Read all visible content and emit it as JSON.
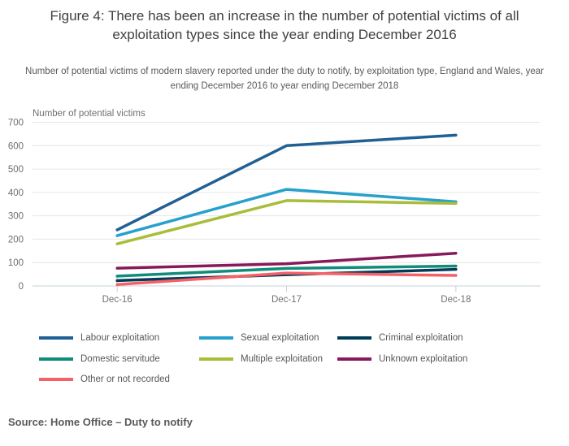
{
  "figure": {
    "title": "Figure 4: There has been an increase in the number of potential victims of all exploitation types since the year ending December 2016",
    "subtitle": "Number of potential victims of modern slavery reported under the duty to notify, by exploitation type, England and Wales, year ending December 2016 to year ending December 2018",
    "source": "Source: Home Office – Duty to notify"
  },
  "chart_data": {
    "type": "line",
    "title": "Figure 4: There has been an increase in the number of potential victims of all exploitation types since the year ending December 2016",
    "categories": [
      "Dec-16",
      "Dec-17",
      "Dec-18"
    ],
    "series": [
      {
        "name": "Labour exploitation",
        "color": "#206095",
        "values": [
          240,
          600,
          645
        ]
      },
      {
        "name": "Sexual exploitation",
        "color": "#27a0cc",
        "values": [
          215,
          413,
          360
        ]
      },
      {
        "name": "Criminal exploitation",
        "color": "#003c57",
        "values": [
          23,
          48,
          71
        ]
      },
      {
        "name": "Domestic servitude",
        "color": "#118c7b",
        "values": [
          42,
          75,
          85
        ]
      },
      {
        "name": "Multiple exploitation",
        "color": "#a8bd3a",
        "values": [
          180,
          365,
          353
        ]
      },
      {
        "name": "Unknown exploitation",
        "color": "#871a5b",
        "values": [
          76,
          95,
          140
        ]
      },
      {
        "name": "Other or not recorded",
        "color": "#f66068",
        "values": [
          6,
          55,
          45
        ]
      }
    ],
    "xlabel": "",
    "ylabel": "Number of potential victims",
    "ylim": [
      0,
      700
    ],
    "ytick_step": 100,
    "grid": true,
    "legend_position": "bottom",
    "palette": {
      "gridline": "#e6e6e6",
      "axis_line": "#c3d2da",
      "tick_label": "#6e6f72"
    }
  }
}
